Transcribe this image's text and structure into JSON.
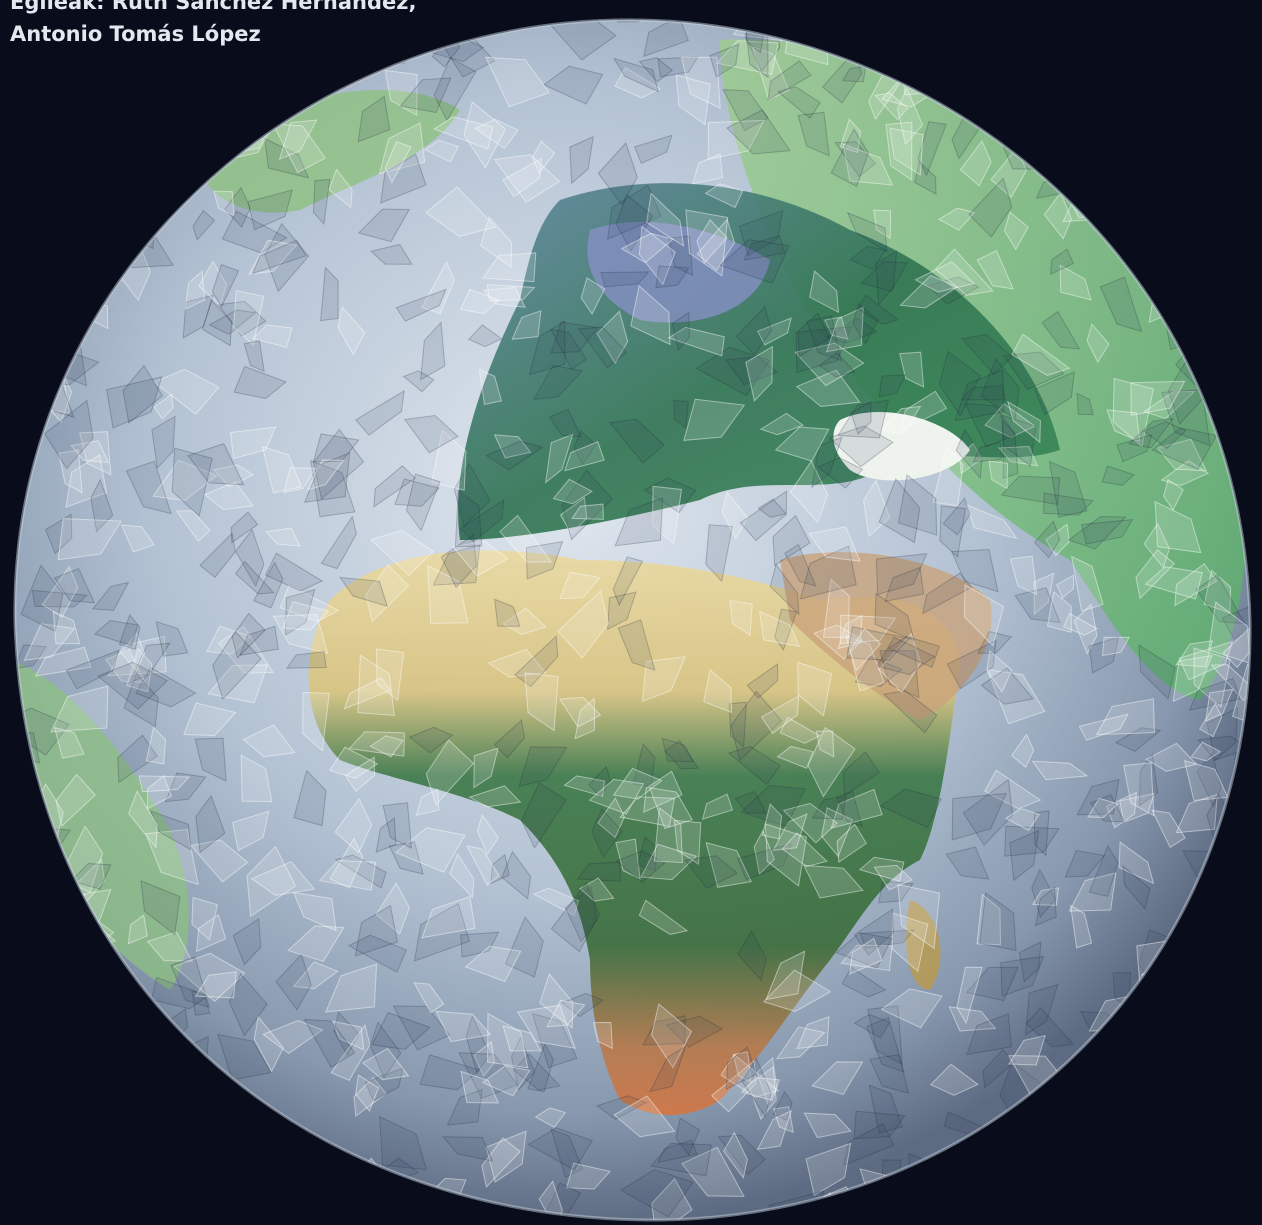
{
  "credits": {
    "lines": [
      "Egileak: Ruth Sánchez Hernández,",
      "Antonio Tomás López"
    ]
  }
}
